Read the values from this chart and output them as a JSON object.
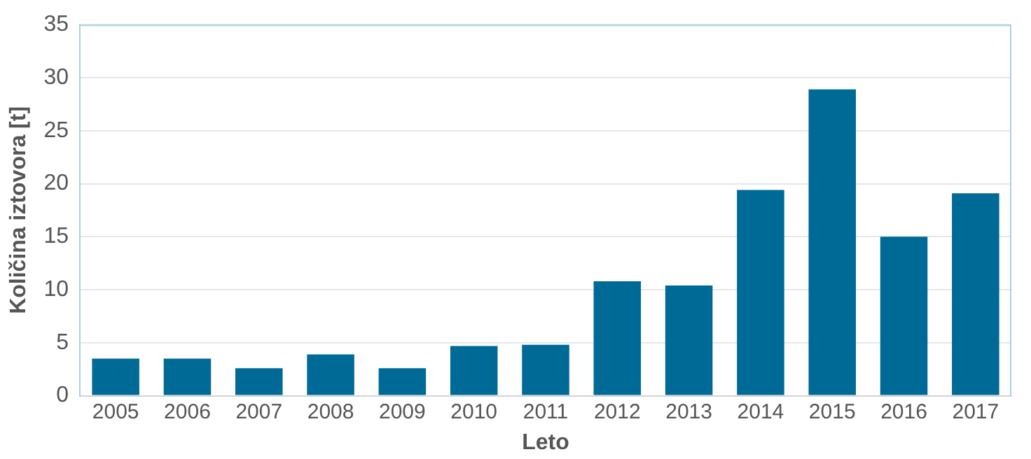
{
  "chart_data": {
    "type": "bar",
    "xlabel": "Leto",
    "ylabel": "Količina iztovora [t]",
    "categories": [
      "2005",
      "2006",
      "2007",
      "2008",
      "2009",
      "2010",
      "2011",
      "2012",
      "2013",
      "2014",
      "2015",
      "2016",
      "2017"
    ],
    "values": [
      3.5,
      3.5,
      2.6,
      3.9,
      2.6,
      4.7,
      4.8,
      10.8,
      10.4,
      19.4,
      28.9,
      15.0,
      19.1
    ],
    "color": "#006a96",
    "ylim": [
      0,
      35
    ],
    "yticks": [
      0,
      5,
      10,
      15,
      20,
      25,
      30,
      35
    ],
    "grid": "y",
    "legend": false
  }
}
